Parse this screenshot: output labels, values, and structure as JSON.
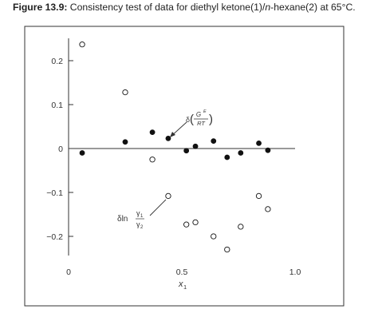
{
  "caption": {
    "figure_label": "Figure 13.9:",
    "text_before_italic": " Consistency test of data for diethyl ketone(1)/",
    "text_italic": "n",
    "text_after_italic": "-hexane(2) at 65°C."
  },
  "chart_data": {
    "type": "scatter",
    "title": "",
    "xlabel": "x",
    "xlabel_subscript": "1",
    "ylabel": "",
    "xlim": [
      0,
      1.0
    ],
    "ylim": [
      -0.25,
      0.25
    ],
    "x_ticks": [
      {
        "value": 0,
        "label": "0"
      },
      {
        "value": 0.5,
        "label": "0.5"
      },
      {
        "value": 1.0,
        "label": "1.0"
      }
    ],
    "y_ticks": [
      {
        "value": 0.2,
        "label": "0.2"
      },
      {
        "value": 0.1,
        "label": "0.1"
      },
      {
        "value": 0,
        "label": "0"
      },
      {
        "value": -0.1,
        "label": "−0.1"
      },
      {
        "value": -0.2,
        "label": "−0.2"
      }
    ],
    "zero_line": true,
    "grid": false,
    "series": [
      {
        "marker": "filled-circle",
        "x": [
          0.06,
          0.25,
          0.37,
          0.44,
          0.52,
          0.56,
          0.64,
          0.7,
          0.76,
          0.84,
          0.88
        ],
        "y": [
          -0.01,
          0.015,
          0.037,
          0.023,
          -0.005,
          0.005,
          0.017,
          -0.02,
          -0.01,
          0.012,
          -0.004
        ]
      },
      {
        "marker": "open-circle",
        "x": [
          0.06,
          0.25,
          0.37,
          0.44,
          0.52,
          0.56,
          0.64,
          0.7,
          0.76,
          0.84,
          0.88
        ],
        "y": [
          0.237,
          0.128,
          -0.025,
          -0.108,
          -0.173,
          -0.168,
          -0.2,
          -0.23,
          -0.178,
          -0.108,
          -0.138
        ]
      }
    ],
    "annotations": [
      {
        "label": "δ(G^E / RT)",
        "delta": "δ",
        "numerator": "G",
        "numerator_sup": "E",
        "denominator": "RT",
        "points_to": {
          "x": 0.44,
          "y": 0.023
        }
      },
      {
        "label": "δ ln γ1/γ2",
        "prefix": "δln",
        "numerator": "γ",
        "numerator_sub": "1",
        "denominator": "γ",
        "denominator_sub": "2",
        "points_to": {
          "x": 0.44,
          "y": -0.108
        }
      }
    ]
  },
  "colors": {
    "axis": "#333333",
    "marker": "#111111",
    "text": "#222222",
    "background": "#ffffff"
  }
}
